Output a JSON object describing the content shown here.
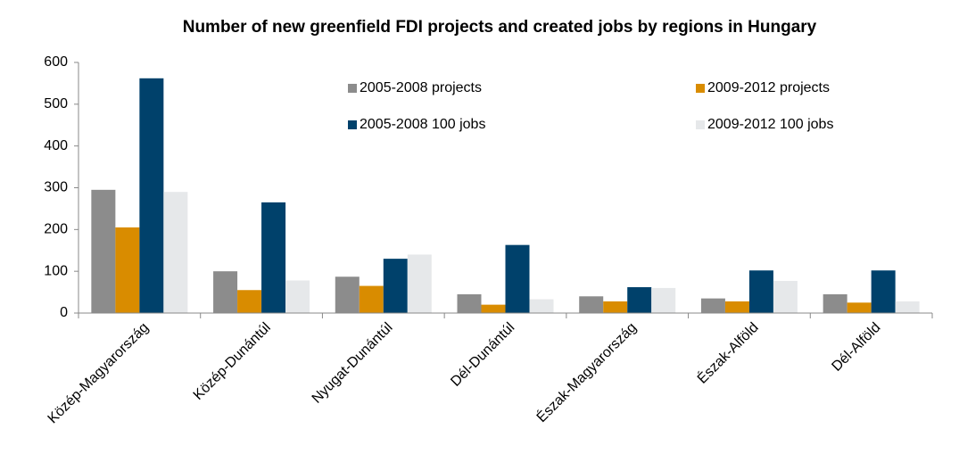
{
  "chart_data": {
    "type": "bar",
    "title": "Number of new greenfield FDI projects and created jobs by regions in Hungary",
    "categories": [
      "Közép-Magyarország",
      "Közép-Dunántúl",
      "Nyugat-Dunántúl",
      "Dél-Dunántúl",
      "Észak-Magyarország",
      "Észak-Alföld",
      "Dél-Alföld"
    ],
    "series": [
      {
        "name": "2005-2008 projects",
        "color": "#8c8c8c",
        "values": [
          295,
          100,
          87,
          45,
          40,
          35,
          45
        ]
      },
      {
        "name": "2009-2012 projects",
        "color": "#d98c00",
        "values": [
          205,
          55,
          65,
          20,
          28,
          28,
          25
        ]
      },
      {
        "name": "2005-2008 100 jobs",
        "color": "#00416b",
        "values": [
          562,
          265,
          130,
          163,
          62,
          102,
          102
        ]
      },
      {
        "name": "2009-2012 100 jobs",
        "color": "#e6e8ea",
        "values": [
          290,
          78,
          140,
          33,
          60,
          77,
          28
        ]
      }
    ],
    "ylim": [
      0,
      600
    ],
    "yticks": [
      0,
      100,
      200,
      300,
      400,
      500,
      600
    ],
    "grid": false,
    "legend": "top"
  }
}
